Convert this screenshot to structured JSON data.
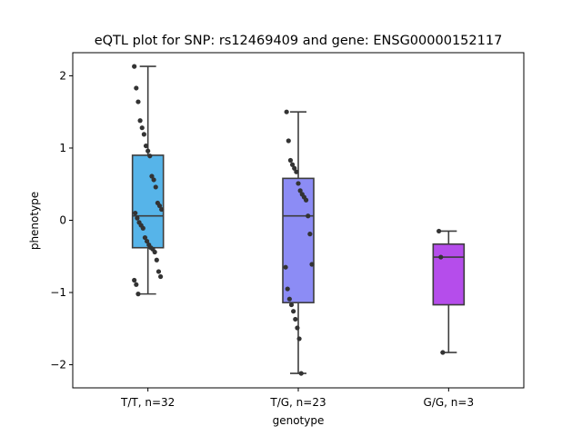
{
  "chart_data": {
    "type": "box",
    "title": "eQTL plot for SNP: rs12469409 and gene: ENSG00000152117",
    "xlabel": "genotype",
    "ylabel": "phenotype",
    "ylim": [
      -2.32,
      2.32
    ],
    "yticks": [
      2,
      1,
      0,
      -1,
      -2
    ],
    "ytick_labels": [
      "2",
      "1",
      "0",
      "−1",
      "−2"
    ],
    "grid": false,
    "categories": [
      "T/T, n=32",
      "T/G, n=23",
      "G/G, n=3"
    ],
    "groups": [
      {
        "label": "T/T, n=32",
        "color": "#56b4e9",
        "q1": -0.38,
        "median": 0.06,
        "q3": 0.9,
        "whisker_low": -1.02,
        "whisker_high": 2.13,
        "points": [
          2.13,
          1.83,
          1.64,
          1.38,
          1.28,
          1.19,
          1.03,
          0.96,
          0.89,
          0.61,
          0.56,
          0.46,
          0.24,
          0.2,
          0.15,
          0.1,
          0.03,
          -0.03,
          -0.07,
          -0.11,
          -0.24,
          -0.29,
          -0.34,
          -0.38,
          -0.4,
          -0.44,
          -0.55,
          -0.71,
          -0.78,
          -0.83,
          -0.89,
          -1.02
        ]
      },
      {
        "label": "T/G, n=23",
        "color": "#8c8cf5",
        "q1": -1.14,
        "median": 0.06,
        "q3": 0.58,
        "whisker_low": -2.12,
        "whisker_high": 1.5,
        "points": [
          1.5,
          1.1,
          0.83,
          0.77,
          0.72,
          0.67,
          0.51,
          0.41,
          0.36,
          0.32,
          0.28,
          0.06,
          -0.19,
          -0.61,
          -0.65,
          -0.95,
          -1.09,
          -1.17,
          -1.26,
          -1.37,
          -1.49,
          -1.64,
          -2.12
        ]
      },
      {
        "label": "G/G, n=3",
        "color": "#b54deb",
        "q1": -1.17,
        "median": -0.51,
        "q3": -0.33,
        "whisker_low": -1.83,
        "whisker_high": -0.15,
        "points": [
          -0.15,
          -0.51,
          -1.83
        ]
      }
    ]
  }
}
